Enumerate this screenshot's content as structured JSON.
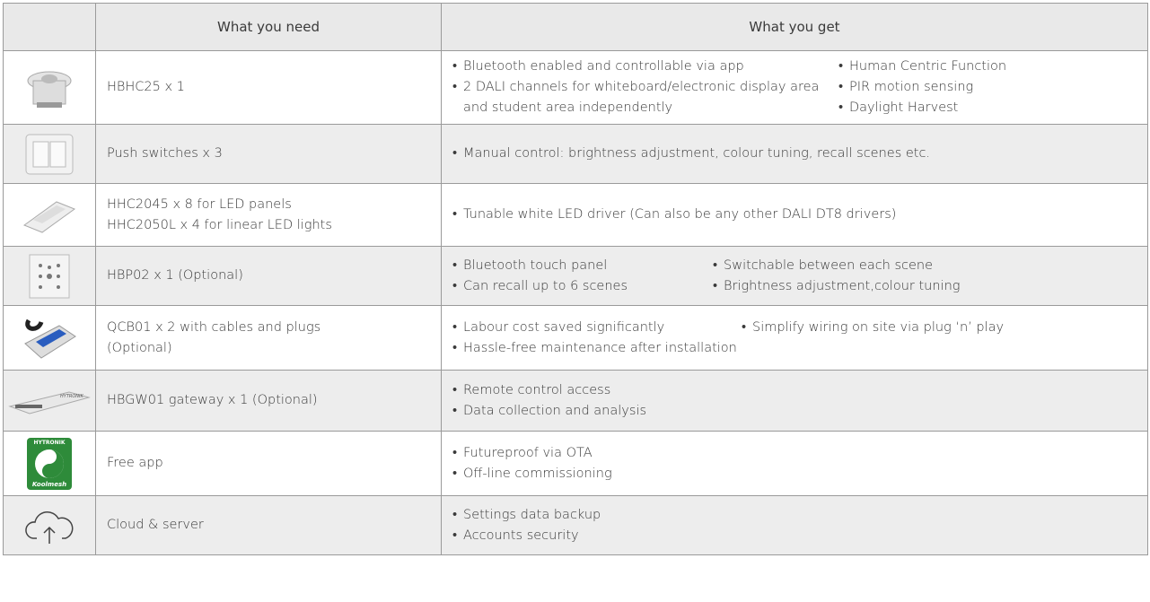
{
  "header": {
    "need": "What you need",
    "get": "What you get"
  },
  "rows": [
    {
      "need": [
        "HBHC25 x 1"
      ],
      "get": [
        [
          "Bluetooth enabled and controllable via app",
          "2 DALI channels for whiteboard/electronic display area and student area independently"
        ],
        [
          "Human Centric Function",
          "PIR motion sensing",
          "Daylight Harvest"
        ]
      ]
    },
    {
      "need": [
        "Push switches x 3"
      ],
      "get": [
        [
          "Manual control: brightness adjustment, colour tuning, recall scenes etc."
        ]
      ]
    },
    {
      "need": [
        "HHC2045 x 8 for LED panels",
        "HHC2050L x 4 for linear LED lights"
      ],
      "get": [
        [
          "Tunable white LED driver (Can also be any other DALI DT8 drivers)"
        ]
      ]
    },
    {
      "need": [
        "HBP02 x 1 (Optional)"
      ],
      "get": [
        [
          "Bluetooth touch panel",
          "Can recall up to 6 scenes"
        ],
        [
          "Switchable between each scene",
          "Brightness adjustment,colour tuning"
        ]
      ]
    },
    {
      "need": [
        "QCB01 x 2 with cables and plugs",
        "(Optional)"
      ],
      "get": [
        [
          "Labour cost saved significantly",
          "Hassle-free maintenance after installation"
        ],
        [
          "Simplify wiring on site via plug ‘n’ play"
        ]
      ]
    },
    {
      "need": [
        "HBGW01 gateway x 1 (Optional)"
      ],
      "get": [
        [
          "Remote control access",
          "Data collection and analysis"
        ]
      ],
      "icon_text": [
        "HYTRONIK"
      ]
    },
    {
      "need": [
        "Free app"
      ],
      "get": [
        [
          "Futureproof via OTA",
          "Off-line commissioning"
        ]
      ],
      "icon_text": [
        "HYTRONIK",
        "Koolmesh"
      ]
    },
    {
      "need": [
        "Cloud & server"
      ],
      "get": [
        [
          "Settings data backup",
          "Accounts security"
        ]
      ]
    }
  ]
}
